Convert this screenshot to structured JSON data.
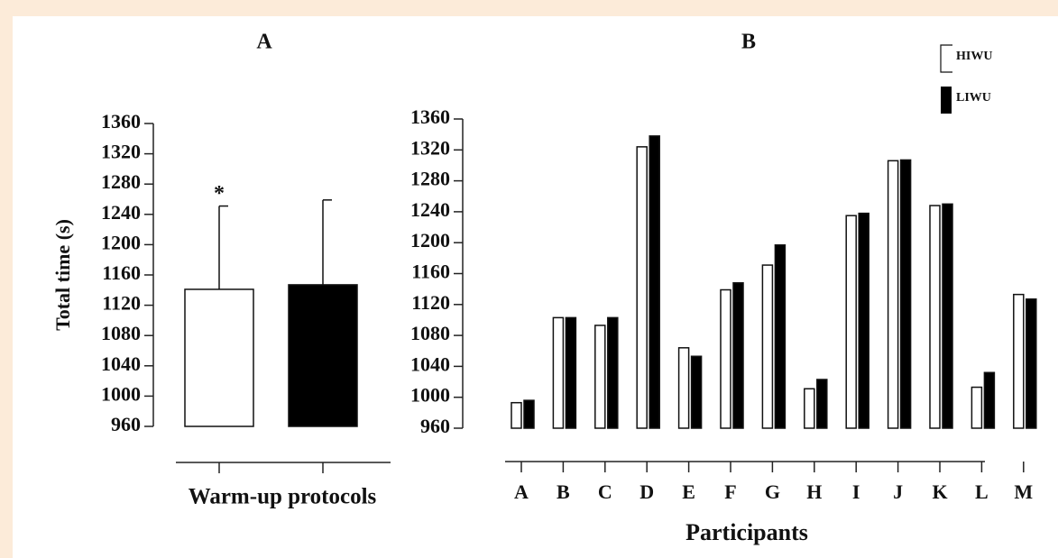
{
  "chart_data": [
    {
      "type": "bar",
      "title": "A",
      "xlabel": "Warm-up protocols",
      "ylabel": "Total time (s)",
      "categories": [
        null,
        null
      ],
      "values": [
        1141,
        1147
      ],
      "errors": [
        110,
        112
      ],
      "colors": [
        "#ffffff",
        "#000000"
      ],
      "annotation": "*",
      "ylim": [
        960,
        1360
      ],
      "yticks": [
        960,
        1000,
        1040,
        1080,
        1120,
        1160,
        1200,
        1240,
        1280,
        1320,
        1360
      ]
    },
    {
      "type": "bar",
      "title": "B",
      "xlabel": "Participants",
      "categories": [
        "A",
        "B",
        "C",
        "D",
        "E",
        "F",
        "G",
        "H",
        "I",
        "J",
        "K",
        "L",
        "M"
      ],
      "series": [
        {
          "name": "HIWU",
          "color": "#ffffff",
          "values": [
            993,
            1103,
            1093,
            1324,
            1064,
            1139,
            1171,
            1011,
            1235,
            1306,
            1248,
            1013,
            1133
          ]
        },
        {
          "name": "LIWU",
          "color": "#000000",
          "values": [
            996,
            1103,
            1103,
            1338,
            1053,
            1148,
            1197,
            1023,
            1238,
            1307,
            1250,
            1032,
            1127
          ]
        }
      ],
      "legend": "upper right",
      "ylim": [
        960,
        1360
      ],
      "yticks": [
        960,
        1000,
        1040,
        1080,
        1120,
        1160,
        1200,
        1240,
        1280,
        1320,
        1360
      ]
    }
  ]
}
